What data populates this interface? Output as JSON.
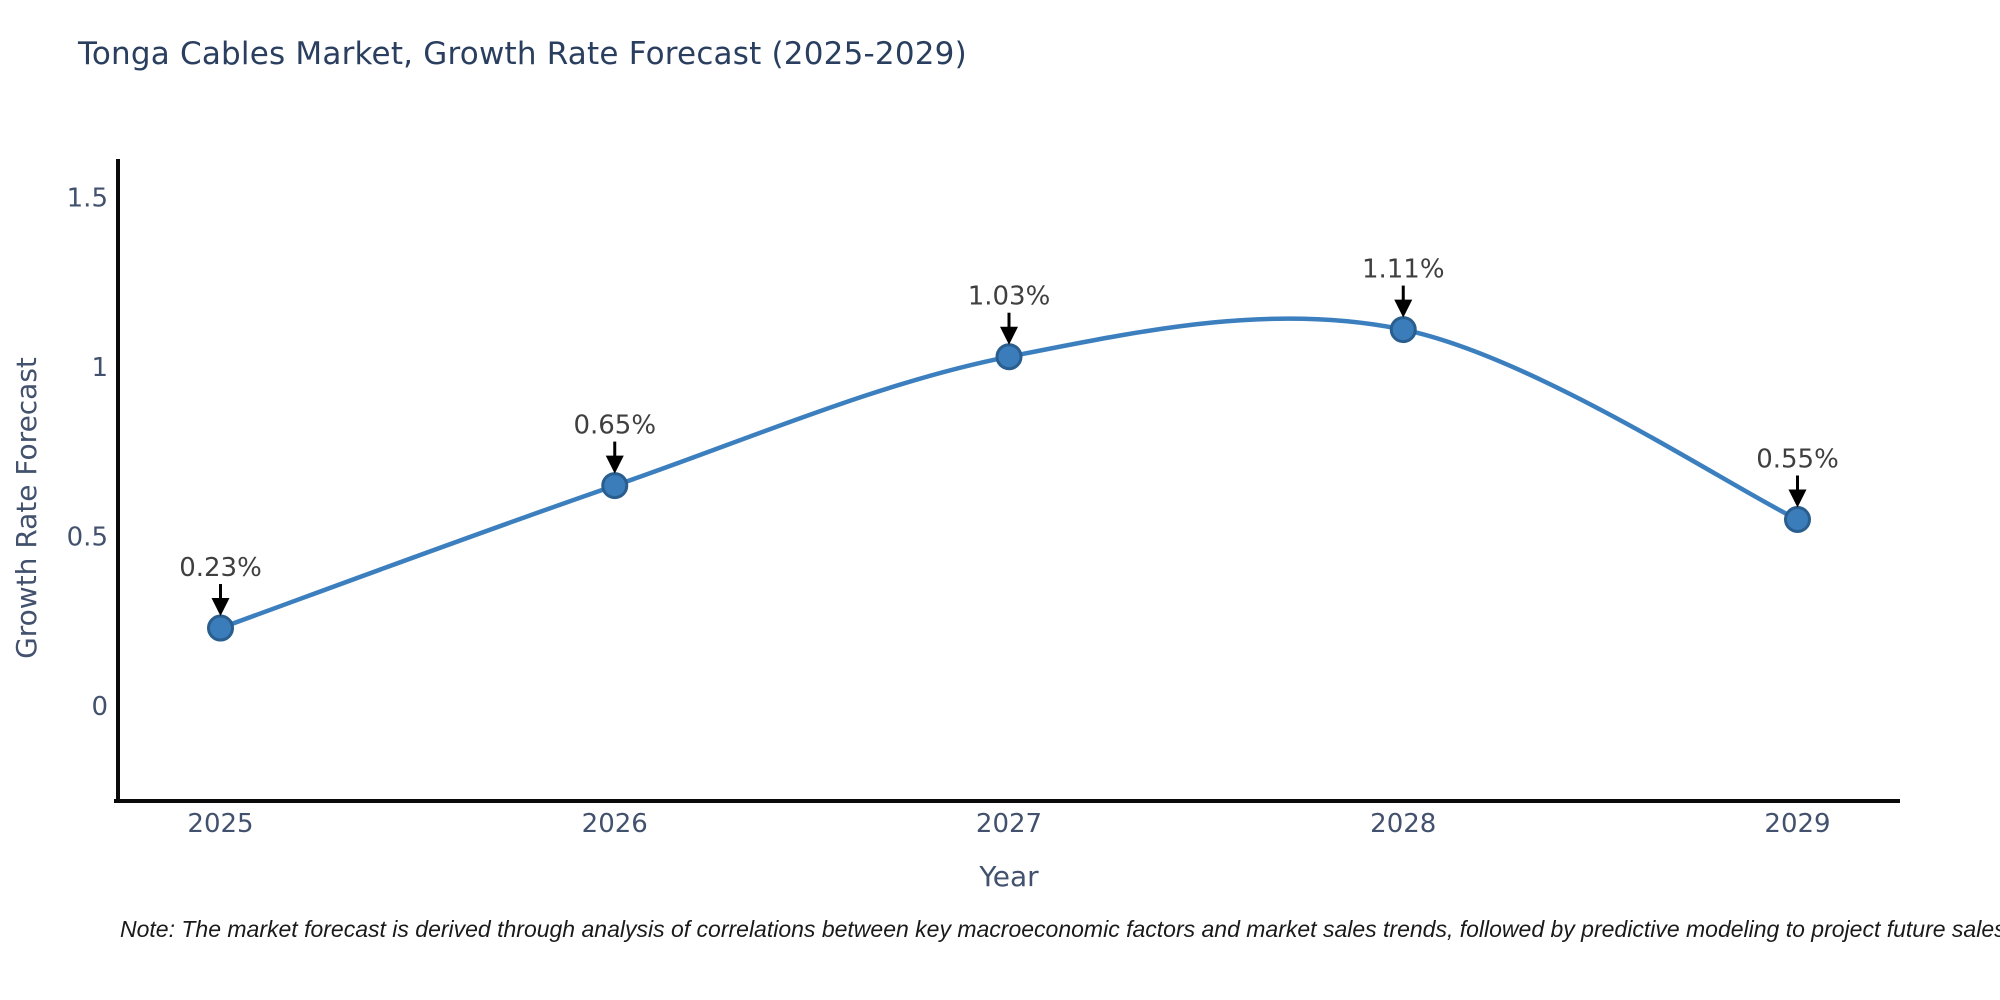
{
  "title": "Tonga Cables Market, Growth Rate Forecast (2025-2029)",
  "note": "Note: The market forecast is derived through analysis of correlations between key macroeconomic factors and market sales trends, followed by predictive modeling to project future sales",
  "chart_data": {
    "type": "line",
    "title": "Tonga Cables Market, Growth Rate Forecast (2025-2029)",
    "x": [
      2025,
      2026,
      2027,
      2028,
      2029
    ],
    "x_tick_labels": [
      "2025",
      "2026",
      "2027",
      "2028",
      "2029"
    ],
    "values": [
      0.23,
      0.65,
      1.03,
      1.11,
      0.55
    ],
    "point_labels": [
      "0.23%",
      "0.65%",
      "1.03%",
      "1.11%",
      "0.55%"
    ],
    "xlabel": "Year",
    "ylabel": "Growth Rate Forecast",
    "yticks": [
      0,
      0.5,
      1,
      1.5
    ],
    "ytick_labels": [
      "0",
      "0.5",
      "1",
      "1.5"
    ],
    "xlim": [
      2024.74,
      2029.26
    ],
    "ylim": [
      -0.28,
      1.61
    ],
    "grid": false,
    "legend": "none",
    "curve": "spline",
    "line_color": "#3c7fbe",
    "marker_color": "#3b7cba",
    "marker_edge_color": "#2a5e8e",
    "annotation_color": "#000000",
    "axis_color": "#0a0a0a"
  }
}
